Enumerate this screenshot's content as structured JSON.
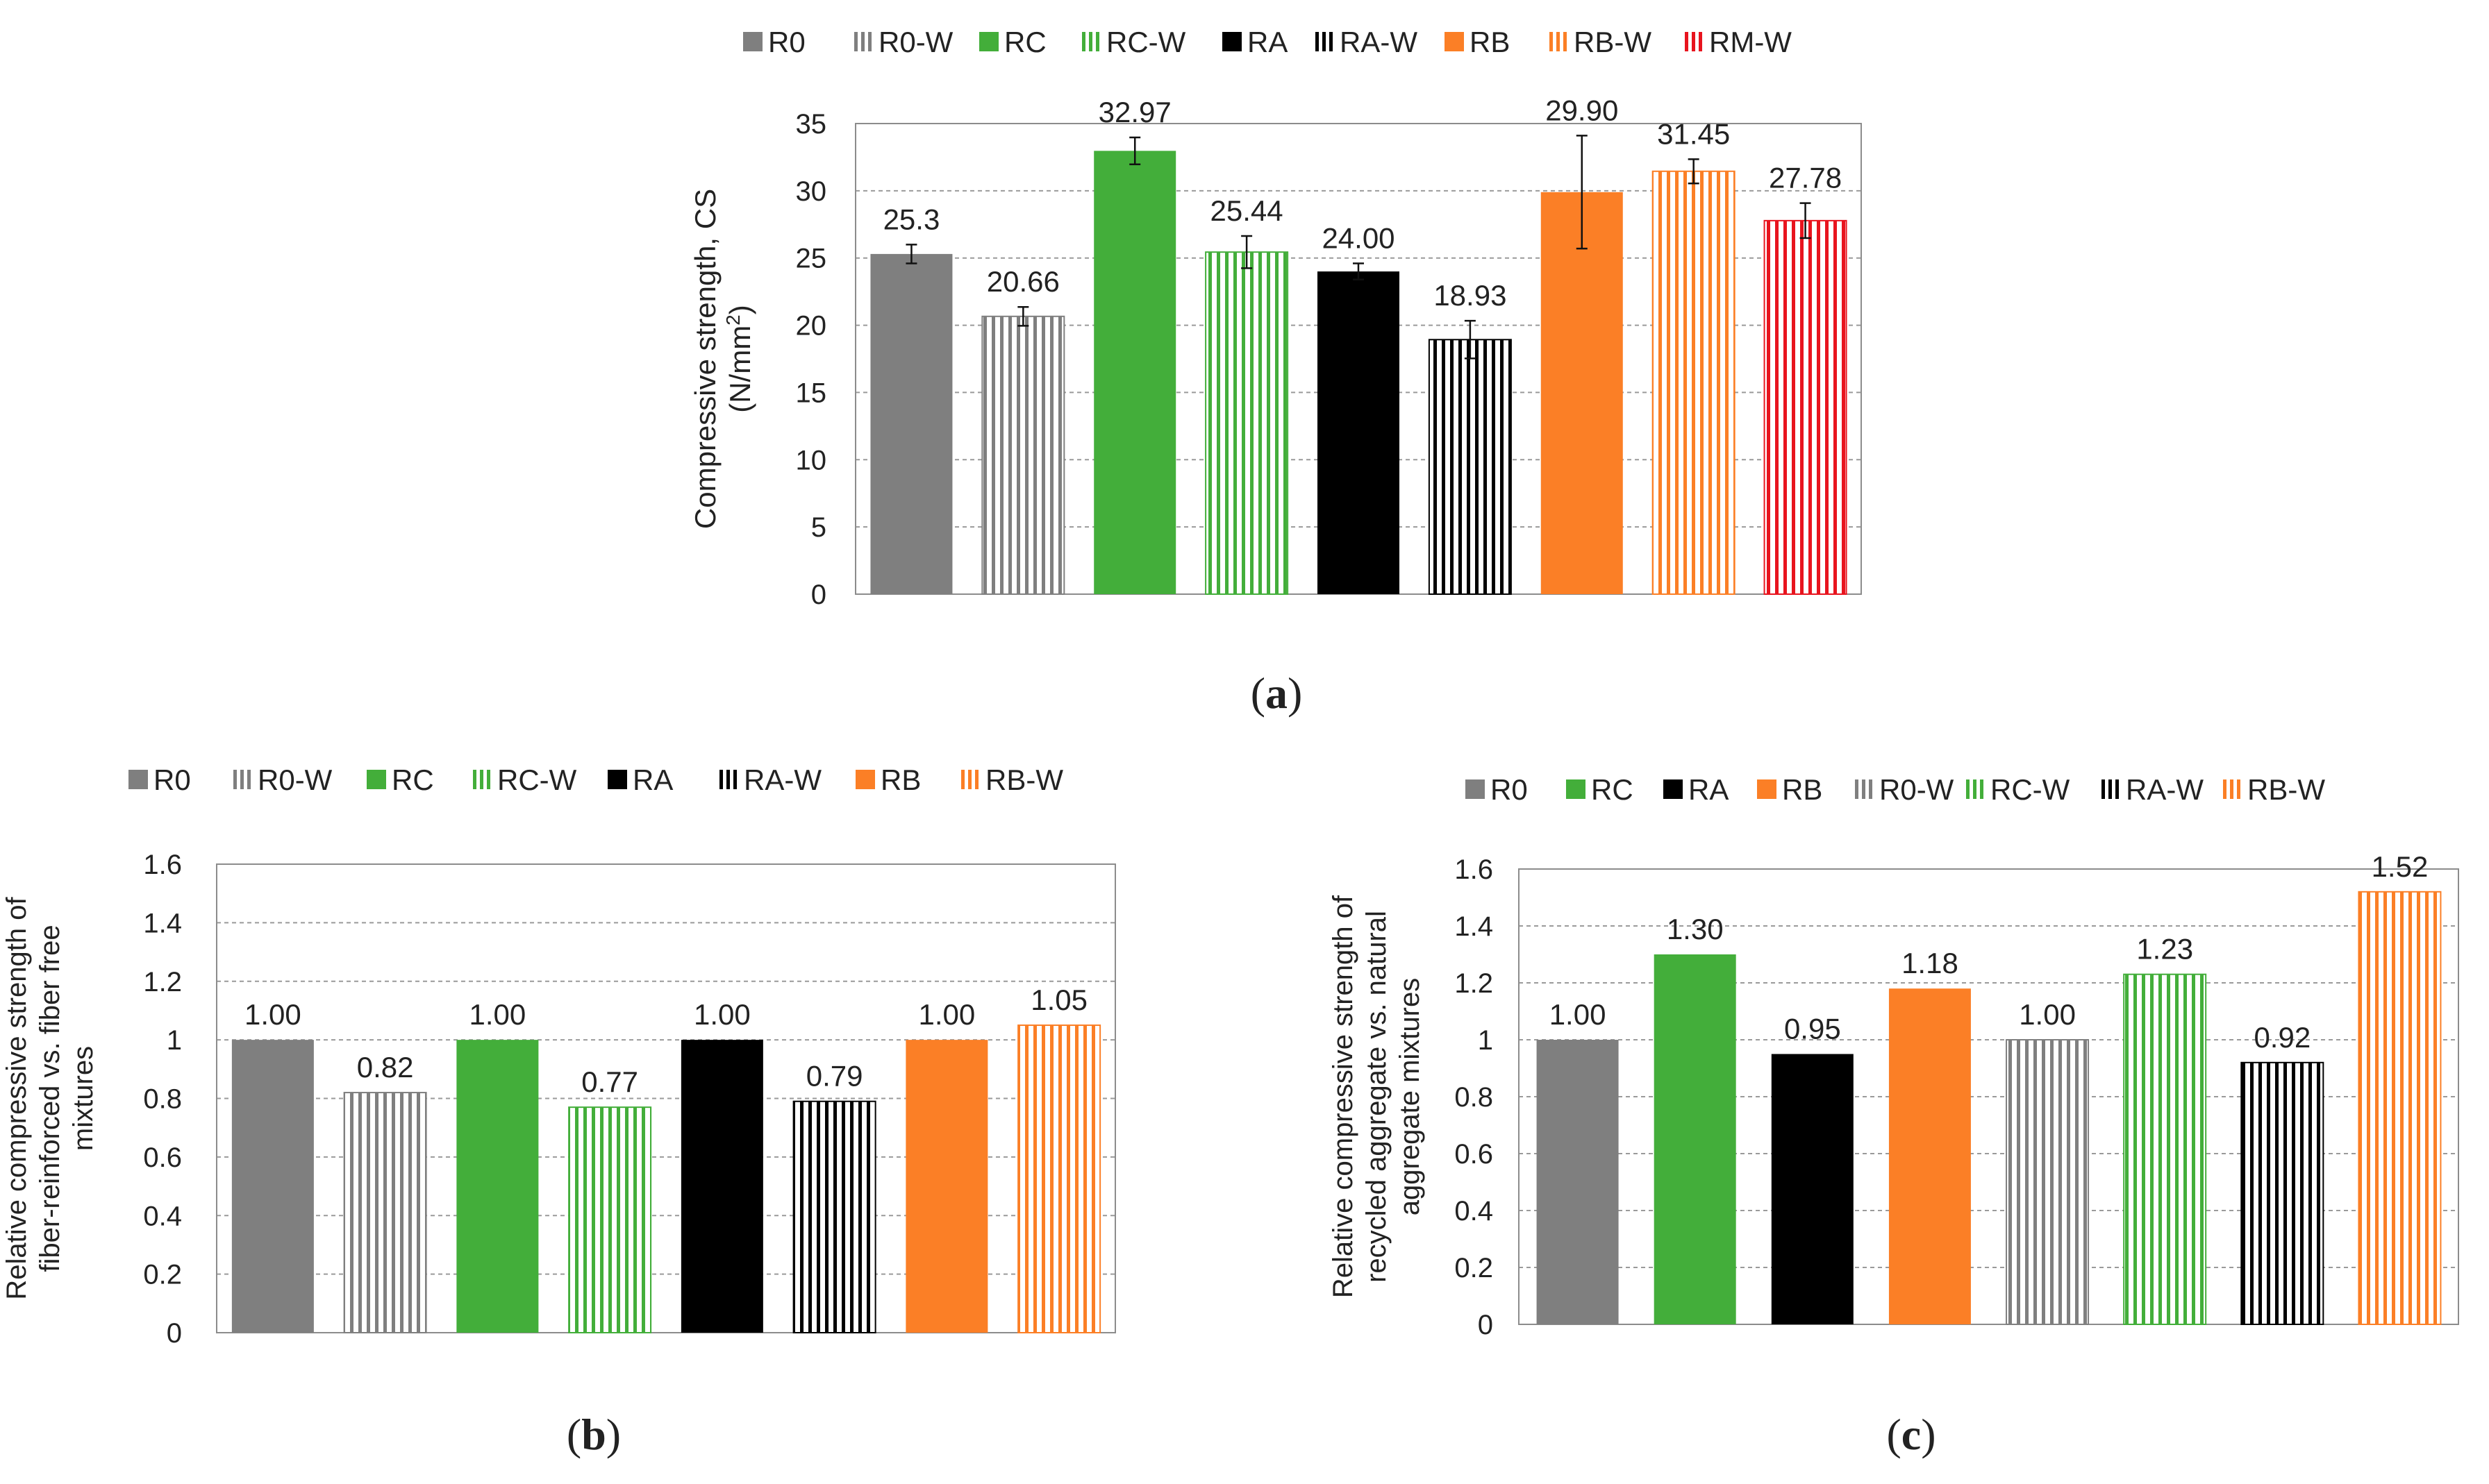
{
  "colors": {
    "R0": "#7f7f7f",
    "R0-W": "#7f7f7f",
    "RC": "#43ae3a",
    "RC-W": "#43ae3a",
    "RA": "#000000",
    "RA-W": "#000000",
    "RB": "#fb7f26",
    "RB-W": "#fb7f26",
    "RM-W": "#e8141e"
  },
  "chart_data": [
    {
      "id": "a",
      "type": "bar",
      "caption": "a",
      "legend": [
        "R0",
        "R0-W",
        "RC",
        "RC-W",
        "RA",
        "RA-W",
        "RB",
        "RB-W",
        "RM-W"
      ],
      "categories": [
        "R0",
        "R0-W",
        "RC",
        "RC-W",
        "RA",
        "RA-W",
        "RB",
        "RB-W",
        "RM-W"
      ],
      "values": [
        25.3,
        20.66,
        32.97,
        25.44,
        24.0,
        18.93,
        29.9,
        31.45,
        27.78
      ],
      "data_labels": [
        "25.3",
        "20.66",
        "32.97",
        "25.44",
        "24.00",
        "18.93",
        "29.90",
        "31.45",
        "27.78"
      ],
      "errors": [
        0.7,
        0.7,
        1.0,
        1.2,
        0.6,
        1.4,
        4.2,
        0.9,
        1.3
      ],
      "ylabel_lines": [
        "Compressive strength, CS",
        "(N/mm",
        "2",
        ")"
      ],
      "ylim": [
        0,
        35
      ],
      "yticks": [
        "0",
        "5",
        "10",
        "15",
        "20",
        "25",
        "30",
        "35"
      ],
      "ytick_values": [
        0,
        5,
        10,
        15,
        20,
        25,
        30,
        35
      ],
      "grid": true
    },
    {
      "id": "b",
      "type": "bar",
      "caption": "b",
      "legend": [
        "R0",
        "R0-W",
        "RC",
        "RC-W",
        "RA",
        "RA-W",
        "RB",
        "RB-W"
      ],
      "categories": [
        "R0",
        "R0-W",
        "RC",
        "RC-W",
        "RA",
        "RA-W",
        "RB",
        "RB-W"
      ],
      "values": [
        1.0,
        0.82,
        1.0,
        0.77,
        1.0,
        0.79,
        1.0,
        1.05
      ],
      "data_labels": [
        "1.00",
        "0.82",
        "1.00",
        "0.77",
        "1.00",
        "0.79",
        "1.00",
        "1.05"
      ],
      "ylabel_lines": [
        "Relative compressive strength of",
        "fiber-reinforced vs. fiber free",
        "mixtures"
      ],
      "ylim": [
        0,
        1.6
      ],
      "yticks": [
        "0",
        "0.2",
        "0.4",
        "0.6",
        "0.8",
        "1",
        "1.2",
        "1.4",
        "1.6"
      ],
      "ytick_values": [
        0,
        0.2,
        0.4,
        0.6,
        0.8,
        1.0,
        1.2,
        1.4,
        1.6
      ],
      "grid": true
    },
    {
      "id": "c",
      "type": "bar",
      "caption": "c",
      "legend": [
        "R0",
        "RC",
        "RA",
        "RB",
        "R0-W",
        "RC-W",
        "RA-W",
        "RB-W"
      ],
      "categories": [
        "R0",
        "RC",
        "RA",
        "RB",
        "R0-W",
        "RC-W",
        "RA-W",
        "RB-W"
      ],
      "values": [
        1.0,
        1.3,
        0.95,
        1.18,
        1.0,
        1.23,
        0.92,
        1.52
      ],
      "data_labels": [
        "1.00",
        "1.30",
        "0.95",
        "1.18",
        "1.00",
        "1.23",
        "0.92",
        "1.52"
      ],
      "ylabel_lines": [
        "Relative compressive strength of",
        "recycled aggregate  vs. natural",
        "aggregate mixtures"
      ],
      "ylim": [
        0,
        1.6
      ],
      "yticks": [
        "0",
        "0.2",
        "0.4",
        "0.6",
        "0.8",
        "1",
        "1.2",
        "1.4",
        "1.6"
      ],
      "ytick_values": [
        0,
        0.2,
        0.4,
        0.6,
        0.8,
        1.0,
        1.2,
        1.4,
        1.6
      ],
      "grid": true
    }
  ]
}
